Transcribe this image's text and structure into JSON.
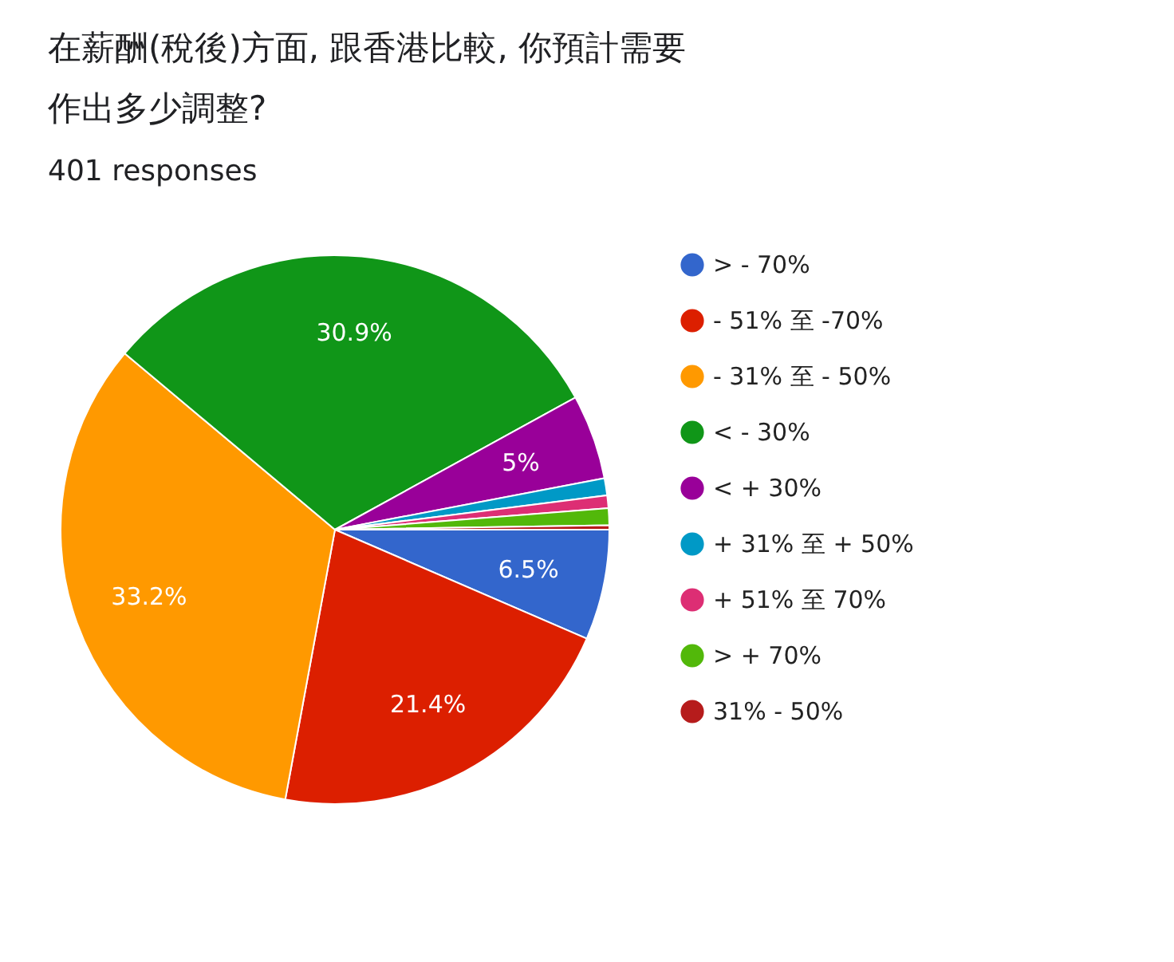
{
  "chart_data": {
    "type": "pie",
    "title": "在薪酬(稅後)方面, 跟香港比較, 你預計需要作出多少調整?",
    "subtitle": "401 responses",
    "categories": [
      "> - 70%",
      "- 51% 至 -70%",
      "- 31% 至 - 50%",
      "< - 30%",
      "< + 30%",
      "+ 31% 至 + 50%",
      "+ 51% 至 70%",
      "> + 70%",
      "31% - 50%"
    ],
    "values": [
      6.5,
      21.4,
      33.2,
      30.9,
      5,
      1.0,
      0.75,
      1.0,
      0.25
    ],
    "value_labels": [
      "6.5%",
      "21.4%",
      "33.2%",
      "30.9%",
      "5%",
      null,
      null,
      null,
      null
    ],
    "colors": [
      "#3366cc",
      "#dc1f00",
      "#ff9900",
      "#109618",
      "#990099",
      "#0099c6",
      "#dd2e74",
      "#52b80a",
      "#b61c1c"
    ],
    "legend": "right"
  }
}
